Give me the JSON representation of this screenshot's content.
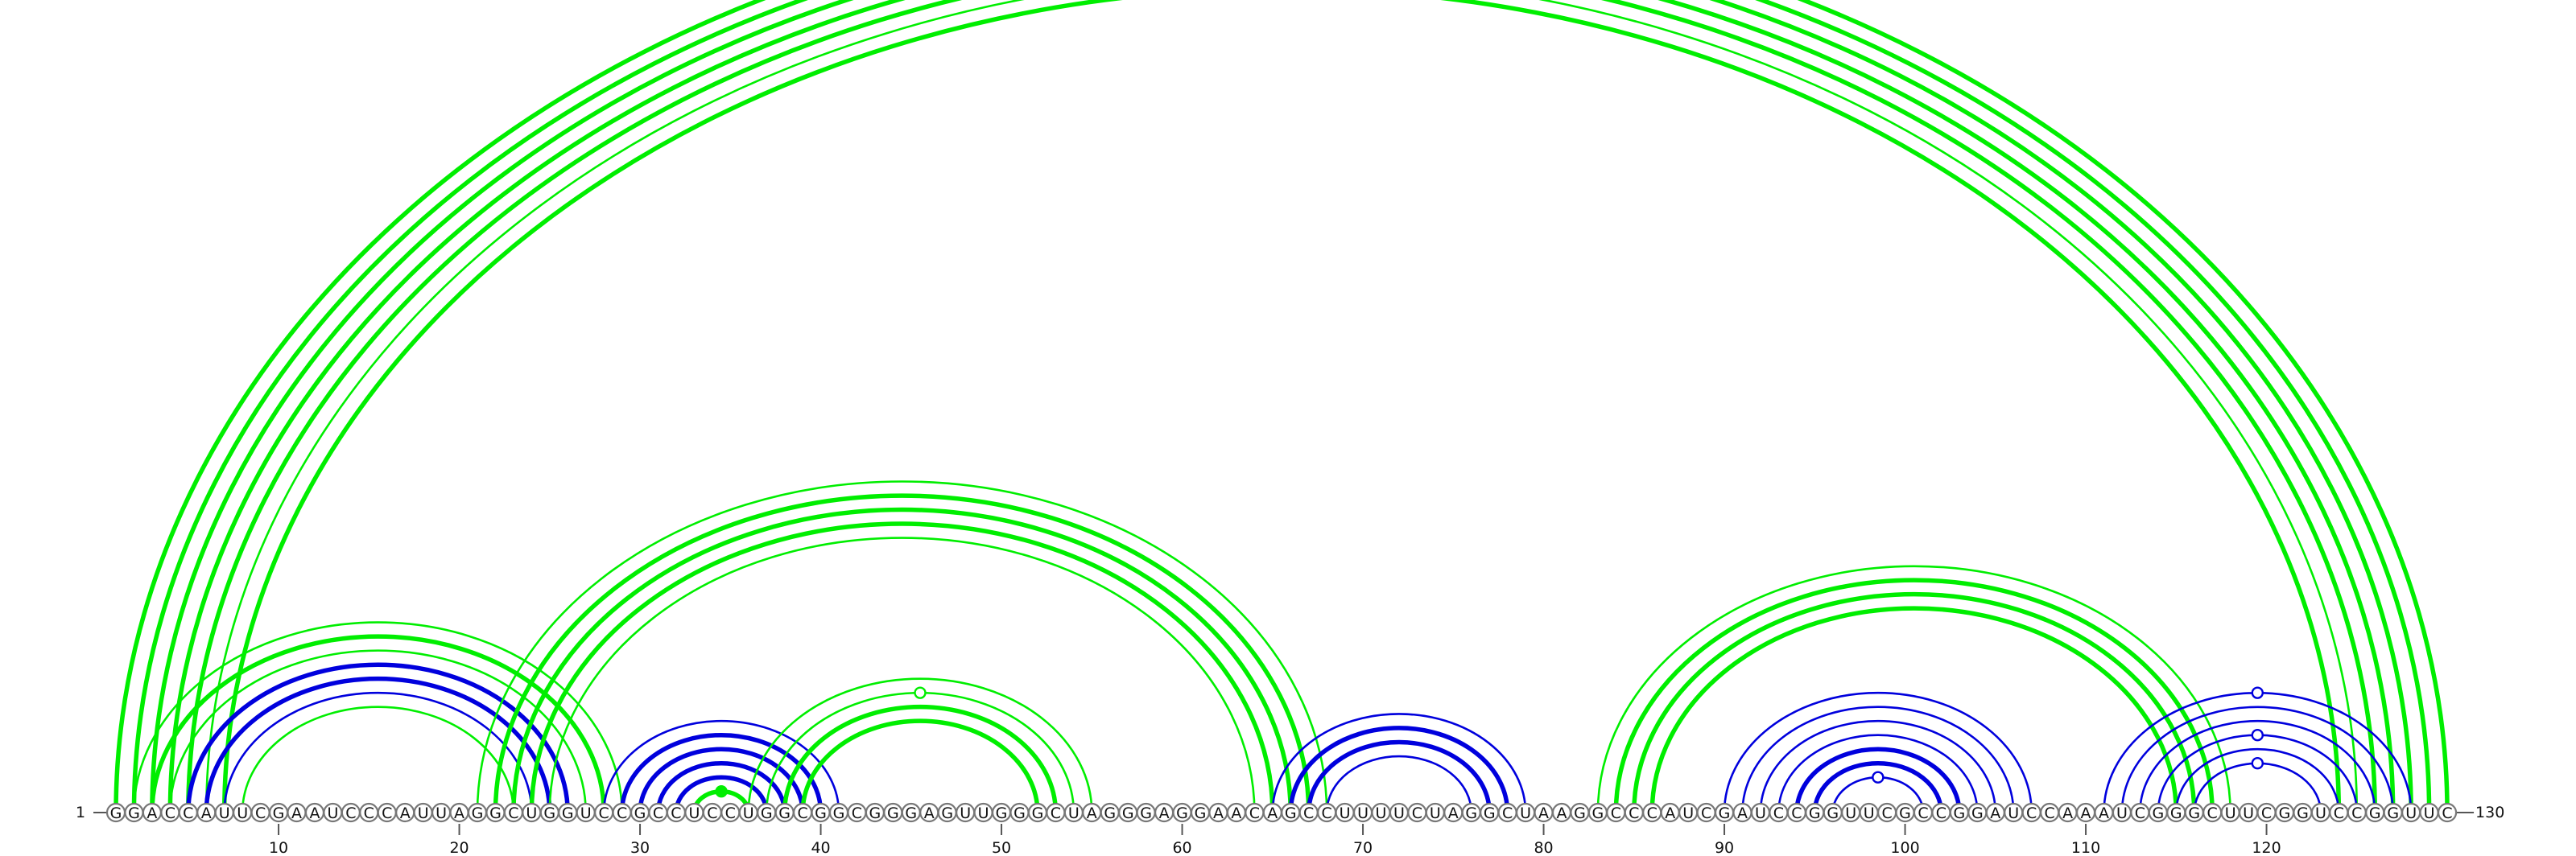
{
  "sequence": "GGACCAUUCGAAUCCCAUUAGGCUGGUCCGCCUCCUGGCGGCGGGAGUUGGGCUAGGGAGGAACAGCCUUUUCUAGGCUAAGGCCCAUCGAUCCGGUUCGCCGGAUCCAAAUCGGGCUUCGGUCCGGUUC",
  "labels": {
    "start": "1",
    "end": "130"
  },
  "colors": {
    "green": "#00ee00",
    "blue": "#0000dd"
  },
  "axis_ticks": [
    10,
    20,
    30,
    40,
    50,
    60,
    70,
    80,
    90,
    100,
    110,
    120
  ],
  "pairs": [
    {
      "i": 1,
      "j": 130,
      "color": "green",
      "weight": 2
    },
    {
      "i": 2,
      "j": 129,
      "color": "green",
      "weight": 2
    },
    {
      "i": 3,
      "j": 128,
      "color": "green",
      "weight": 2
    },
    {
      "i": 4,
      "j": 127,
      "color": "green",
      "weight": 2
    },
    {
      "i": 5,
      "j": 126,
      "color": "green",
      "weight": 2
    },
    {
      "i": 6,
      "j": 125,
      "color": "green",
      "weight": 1,
      "marker": "open"
    },
    {
      "i": 7,
      "j": 124,
      "color": "green",
      "weight": 2
    },
    {
      "i": 2,
      "j": 29,
      "color": "green",
      "weight": 1
    },
    {
      "i": 3,
      "j": 28,
      "color": "green",
      "weight": 2
    },
    {
      "i": 4,
      "j": 27,
      "color": "green",
      "weight": 1
    },
    {
      "i": 5,
      "j": 26,
      "color": "blue",
      "weight": 2
    },
    {
      "i": 6,
      "j": 25,
      "color": "blue",
      "weight": 2
    },
    {
      "i": 7,
      "j": 24,
      "color": "blue",
      "weight": 1
    },
    {
      "i": 8,
      "j": 23,
      "color": "green",
      "weight": 1
    },
    {
      "i": 21,
      "j": 68,
      "color": "green",
      "weight": 1
    },
    {
      "i": 22,
      "j": 67,
      "color": "green",
      "weight": 2
    },
    {
      "i": 23,
      "j": 66,
      "color": "green",
      "weight": 2
    },
    {
      "i": 24,
      "j": 65,
      "color": "green",
      "weight": 2
    },
    {
      "i": 25,
      "j": 64,
      "color": "green",
      "weight": 1
    },
    {
      "i": 28,
      "j": 41,
      "color": "blue",
      "weight": 1
    },
    {
      "i": 29,
      "j": 40,
      "color": "blue",
      "weight": 2
    },
    {
      "i": 30,
      "j": 39,
      "color": "blue",
      "weight": 2
    },
    {
      "i": 31,
      "j": 38,
      "color": "blue",
      "weight": 2
    },
    {
      "i": 32,
      "j": 37,
      "color": "blue",
      "weight": 2
    },
    {
      "i": 33,
      "j": 36,
      "color": "green",
      "weight": 2,
      "marker": "filled"
    },
    {
      "i": 36,
      "j": 55,
      "color": "green",
      "weight": 1
    },
    {
      "i": 37,
      "j": 54,
      "color": "green",
      "weight": 1,
      "marker": "open"
    },
    {
      "i": 38,
      "j": 53,
      "color": "green",
      "weight": 2
    },
    {
      "i": 39,
      "j": 52,
      "color": "green",
      "weight": 2
    },
    {
      "i": 65,
      "j": 79,
      "color": "blue",
      "weight": 1
    },
    {
      "i": 66,
      "j": 78,
      "color": "blue",
      "weight": 2
    },
    {
      "i": 67,
      "j": 77,
      "color": "blue",
      "weight": 2
    },
    {
      "i": 68,
      "j": 76,
      "color": "blue",
      "weight": 1
    },
    {
      "i": 83,
      "j": 118,
      "color": "green",
      "weight": 1
    },
    {
      "i": 84,
      "j": 117,
      "color": "green",
      "weight": 2
    },
    {
      "i": 85,
      "j": 116,
      "color": "green",
      "weight": 2
    },
    {
      "i": 86,
      "j": 115,
      "color": "green",
      "weight": 2
    },
    {
      "i": 90,
      "j": 107,
      "color": "blue",
      "weight": 1
    },
    {
      "i": 91,
      "j": 106,
      "color": "blue",
      "weight": 1
    },
    {
      "i": 92,
      "j": 105,
      "color": "blue",
      "weight": 1
    },
    {
      "i": 93,
      "j": 104,
      "color": "blue",
      "weight": 1
    },
    {
      "i": 94,
      "j": 103,
      "color": "blue",
      "weight": 2
    },
    {
      "i": 95,
      "j": 102,
      "color": "blue",
      "weight": 2
    },
    {
      "i": 96,
      "j": 101,
      "color": "blue",
      "weight": 1,
      "marker": "open"
    },
    {
      "i": 111,
      "j": 128,
      "color": "blue",
      "weight": 1,
      "marker": "open"
    },
    {
      "i": 112,
      "j": 127,
      "color": "blue",
      "weight": 1
    },
    {
      "i": 113,
      "j": 126,
      "color": "blue",
      "weight": 1
    },
    {
      "i": 114,
      "j": 125,
      "color": "blue",
      "weight": 1,
      "marker": "open"
    },
    {
      "i": 115,
      "j": 124,
      "color": "blue",
      "weight": 1
    },
    {
      "i": 116,
      "j": 123,
      "color": "blue",
      "weight": 1,
      "marker": "open"
    }
  ]
}
